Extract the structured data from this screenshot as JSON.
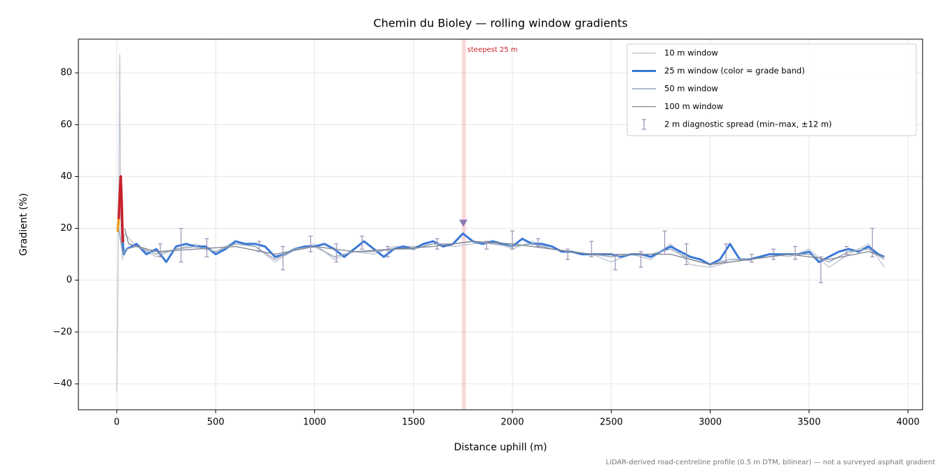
{
  "chart_data": {
    "type": "line",
    "title": "Chemin du Bioley — rolling window gradients",
    "xlabel": "Distance uphill (m)",
    "ylabel": "Gradient (%)",
    "footnote": "LiDAR-derived road-centreline profile (0.5 m DTM, bilinear) — not a surveyed asphalt gradient",
    "xlim": [
      -194,
      4074
    ],
    "ylim": [
      -50,
      93
    ],
    "xticks": [
      0,
      500,
      1000,
      1500,
      2000,
      2500,
      3000,
      3500,
      4000
    ],
    "yticks": [
      {
        "value": -40,
        "label": "−40"
      },
      {
        "value": -20,
        "label": "−20"
      },
      0,
      20,
      40,
      60,
      80
    ],
    "grid": true,
    "legend": "upper right",
    "highlight_span": {
      "x": [
        1745,
        1765
      ],
      "color": "#f4a6ae",
      "text": "steepest 25 m",
      "text_color": "#c8202a"
    },
    "peak_marker": {
      "x": 1752,
      "y": 22,
      "color": "#8a78b0"
    },
    "grade_bands": [
      {
        "from": 20,
        "color": "#f0a020"
      },
      {
        "from": 30,
        "color": "#c8202a"
      }
    ],
    "series": [
      {
        "name": "10 m window",
        "color": "#c3cbd6",
        "width": 1.5,
        "x": [
          0,
          5,
          10,
          15,
          20,
          30,
          40,
          100,
          200,
          300,
          400,
          500,
          600,
          700,
          800,
          900,
          1000,
          1100,
          1200,
          1300,
          1400,
          1500,
          1600,
          1700,
          1800,
          1900,
          2000,
          2100,
          2200,
          2300,
          2400,
          2500,
          2600,
          2700,
          2800,
          2900,
          3000,
          3100,
          3200,
          3300,
          3400,
          3500,
          3600,
          3700,
          3800,
          3880
        ],
        "values": [
          -43,
          -10,
          30,
          87,
          20,
          8,
          18,
          13,
          9,
          12,
          14,
          11,
          15,
          13,
          7,
          12,
          14,
          8,
          11,
          10,
          13,
          13,
          14,
          13,
          14,
          15,
          12,
          15,
          12,
          11,
          10,
          7,
          10,
          8,
          14,
          6,
          5,
          7,
          8,
          10,
          9,
          12,
          5,
          10,
          14,
          5
        ]
      },
      {
        "name": "25 m window (color = grade band)",
        "color": "#3a78d8",
        "width": 3,
        "banded": true,
        "x": [
          5,
          10,
          15,
          20,
          25,
          30,
          35,
          50,
          100,
          150,
          200,
          250,
          300,
          350,
          400,
          450,
          500,
          550,
          600,
          650,
          700,
          750,
          800,
          850,
          900,
          950,
          1000,
          1050,
          1100,
          1150,
          1200,
          1250,
          1300,
          1350,
          1400,
          1450,
          1500,
          1550,
          1600,
          1650,
          1700,
          1750,
          1800,
          1850,
          1900,
          1950,
          2000,
          2050,
          2100,
          2150,
          2200,
          2250,
          2300,
          2350,
          2400,
          2450,
          2500,
          2550,
          2600,
          2650,
          2700,
          2750,
          2800,
          2850,
          2900,
          2950,
          3000,
          3050,
          3100,
          3150,
          3200,
          3250,
          3300,
          3350,
          3400,
          3450,
          3500,
          3550,
          3600,
          3650,
          3700,
          3750,
          3800,
          3850,
          3880
        ],
        "values": [
          19,
          24,
          33,
          40,
          30,
          15,
          10,
          12,
          14,
          10,
          12,
          7,
          13,
          14,
          13,
          13,
          10,
          12,
          15,
          14,
          14,
          13,
          9,
          10,
          12,
          13,
          13,
          14,
          12,
          9,
          12,
          15,
          12,
          9,
          12,
          13,
          12,
          14,
          15,
          13,
          14,
          18,
          15,
          14,
          15,
          14,
          13,
          16,
          14,
          14,
          13,
          11,
          11,
          10,
          10,
          10,
          10,
          9,
          10,
          10,
          9,
          11,
          13,
          11,
          9,
          8,
          6,
          8,
          14,
          8,
          8,
          9,
          10,
          10,
          10,
          10,
          11,
          7,
          9,
          11,
          12,
          11,
          13,
          10,
          9
        ]
      },
      {
        "name": "50 m window",
        "color": "#9aa8ba",
        "width": 1.5,
        "x": [
          10,
          30,
          50,
          100,
          200,
          300,
          400,
          500,
          600,
          700,
          800,
          900,
          1000,
          1100,
          1200,
          1300,
          1400,
          1500,
          1600,
          1700,
          1800,
          1900,
          2000,
          2100,
          2200,
          2300,
          2400,
          2500,
          2600,
          2700,
          2800,
          2900,
          3000,
          3100,
          3200,
          3300,
          3400,
          3500,
          3600,
          3700,
          3800,
          3880
        ],
        "values": [
          20,
          10,
          12,
          13,
          10,
          12,
          13,
          11,
          14,
          13,
          8,
          12,
          13,
          9,
          11,
          11,
          12,
          12,
          14,
          14,
          15,
          14,
          13,
          14,
          12,
          11,
          10,
          9,
          10,
          10,
          12,
          8,
          6,
          8,
          8,
          9,
          10,
          10,
          7,
          11,
          12,
          8
        ]
      },
      {
        "name": "100 m window",
        "color": "#7a828f",
        "width": 1.3,
        "x": [
          40,
          60,
          200,
          400,
          600,
          800,
          1000,
          1200,
          1400,
          1600,
          1800,
          2000,
          2200,
          2400,
          2600,
          2800,
          3000,
          3200,
          3400,
          3600,
          3800,
          3880
        ],
        "values": [
          20,
          14,
          11,
          12,
          13,
          10,
          13,
          11,
          12,
          13,
          15,
          14,
          12,
          10,
          10,
          10,
          6,
          8,
          10,
          8,
          11,
          9
        ]
      },
      {
        "name": "2 m diagnostic spread (min–max, ±12 m)",
        "color": "#9b8fb5",
        "style": "errorbar",
        "x": [
          220,
          325,
          455,
          720,
          840,
          980,
          1110,
          1240,
          1370,
          1620,
          1870,
          2000,
          2130,
          2280,
          2400,
          2520,
          2650,
          2770,
          2880,
          3080,
          3210,
          3320,
          3430,
          3560,
          3690,
          3820
        ],
        "low": [
          9,
          7,
          9,
          11,
          4,
          11,
          7,
          12,
          9,
          12,
          12,
          12,
          13,
          8,
          9,
          4,
          5,
          10,
          6,
          7,
          7,
          8,
          8,
          -1,
          10,
          9
        ],
        "high": [
          14,
          20,
          16,
          15,
          13,
          17,
          14,
          17,
          13,
          16,
          15,
          19,
          16,
          12,
          15,
          10,
          11,
          19,
          14,
          14,
          10,
          12,
          13,
          9,
          13,
          20
        ]
      }
    ]
  }
}
